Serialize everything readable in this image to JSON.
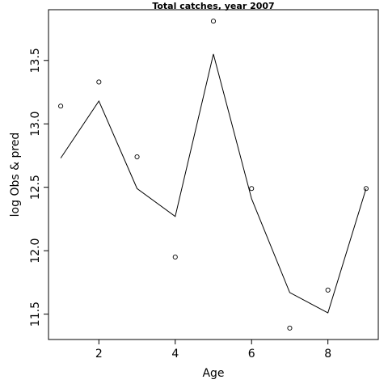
{
  "chart_data": {
    "type": "line",
    "title": "Total catches, year 2007",
    "xlabel": "Age",
    "ylabel": "log Obs & pred",
    "xlim": [
      0.68,
      9.32
    ],
    "ylim": [
      11.3,
      13.9
    ],
    "xticks": [
      2,
      4,
      6,
      8
    ],
    "xtick_labels": [
      "2",
      "4",
      "6",
      "8"
    ],
    "yticks": [
      11.5,
      12.0,
      12.5,
      13.0,
      13.5
    ],
    "ytick_labels": [
      "11.5",
      "12.0",
      "12.5",
      "13.0",
      "13.5"
    ],
    "grid": false,
    "series": [
      {
        "style": "points",
        "x": [
          1,
          2,
          3,
          4,
          5,
          6,
          7,
          8,
          9
        ],
        "y": [
          13.14,
          13.33,
          12.74,
          11.95,
          13.81,
          12.49,
          11.39,
          11.69,
          12.49
        ]
      },
      {
        "style": "line",
        "x": [
          1,
          2,
          3,
          4,
          5,
          6,
          7,
          8,
          9
        ],
        "y": [
          12.73,
          13.18,
          12.49,
          12.27,
          13.55,
          12.41,
          11.67,
          11.51,
          12.49
        ]
      }
    ]
  }
}
